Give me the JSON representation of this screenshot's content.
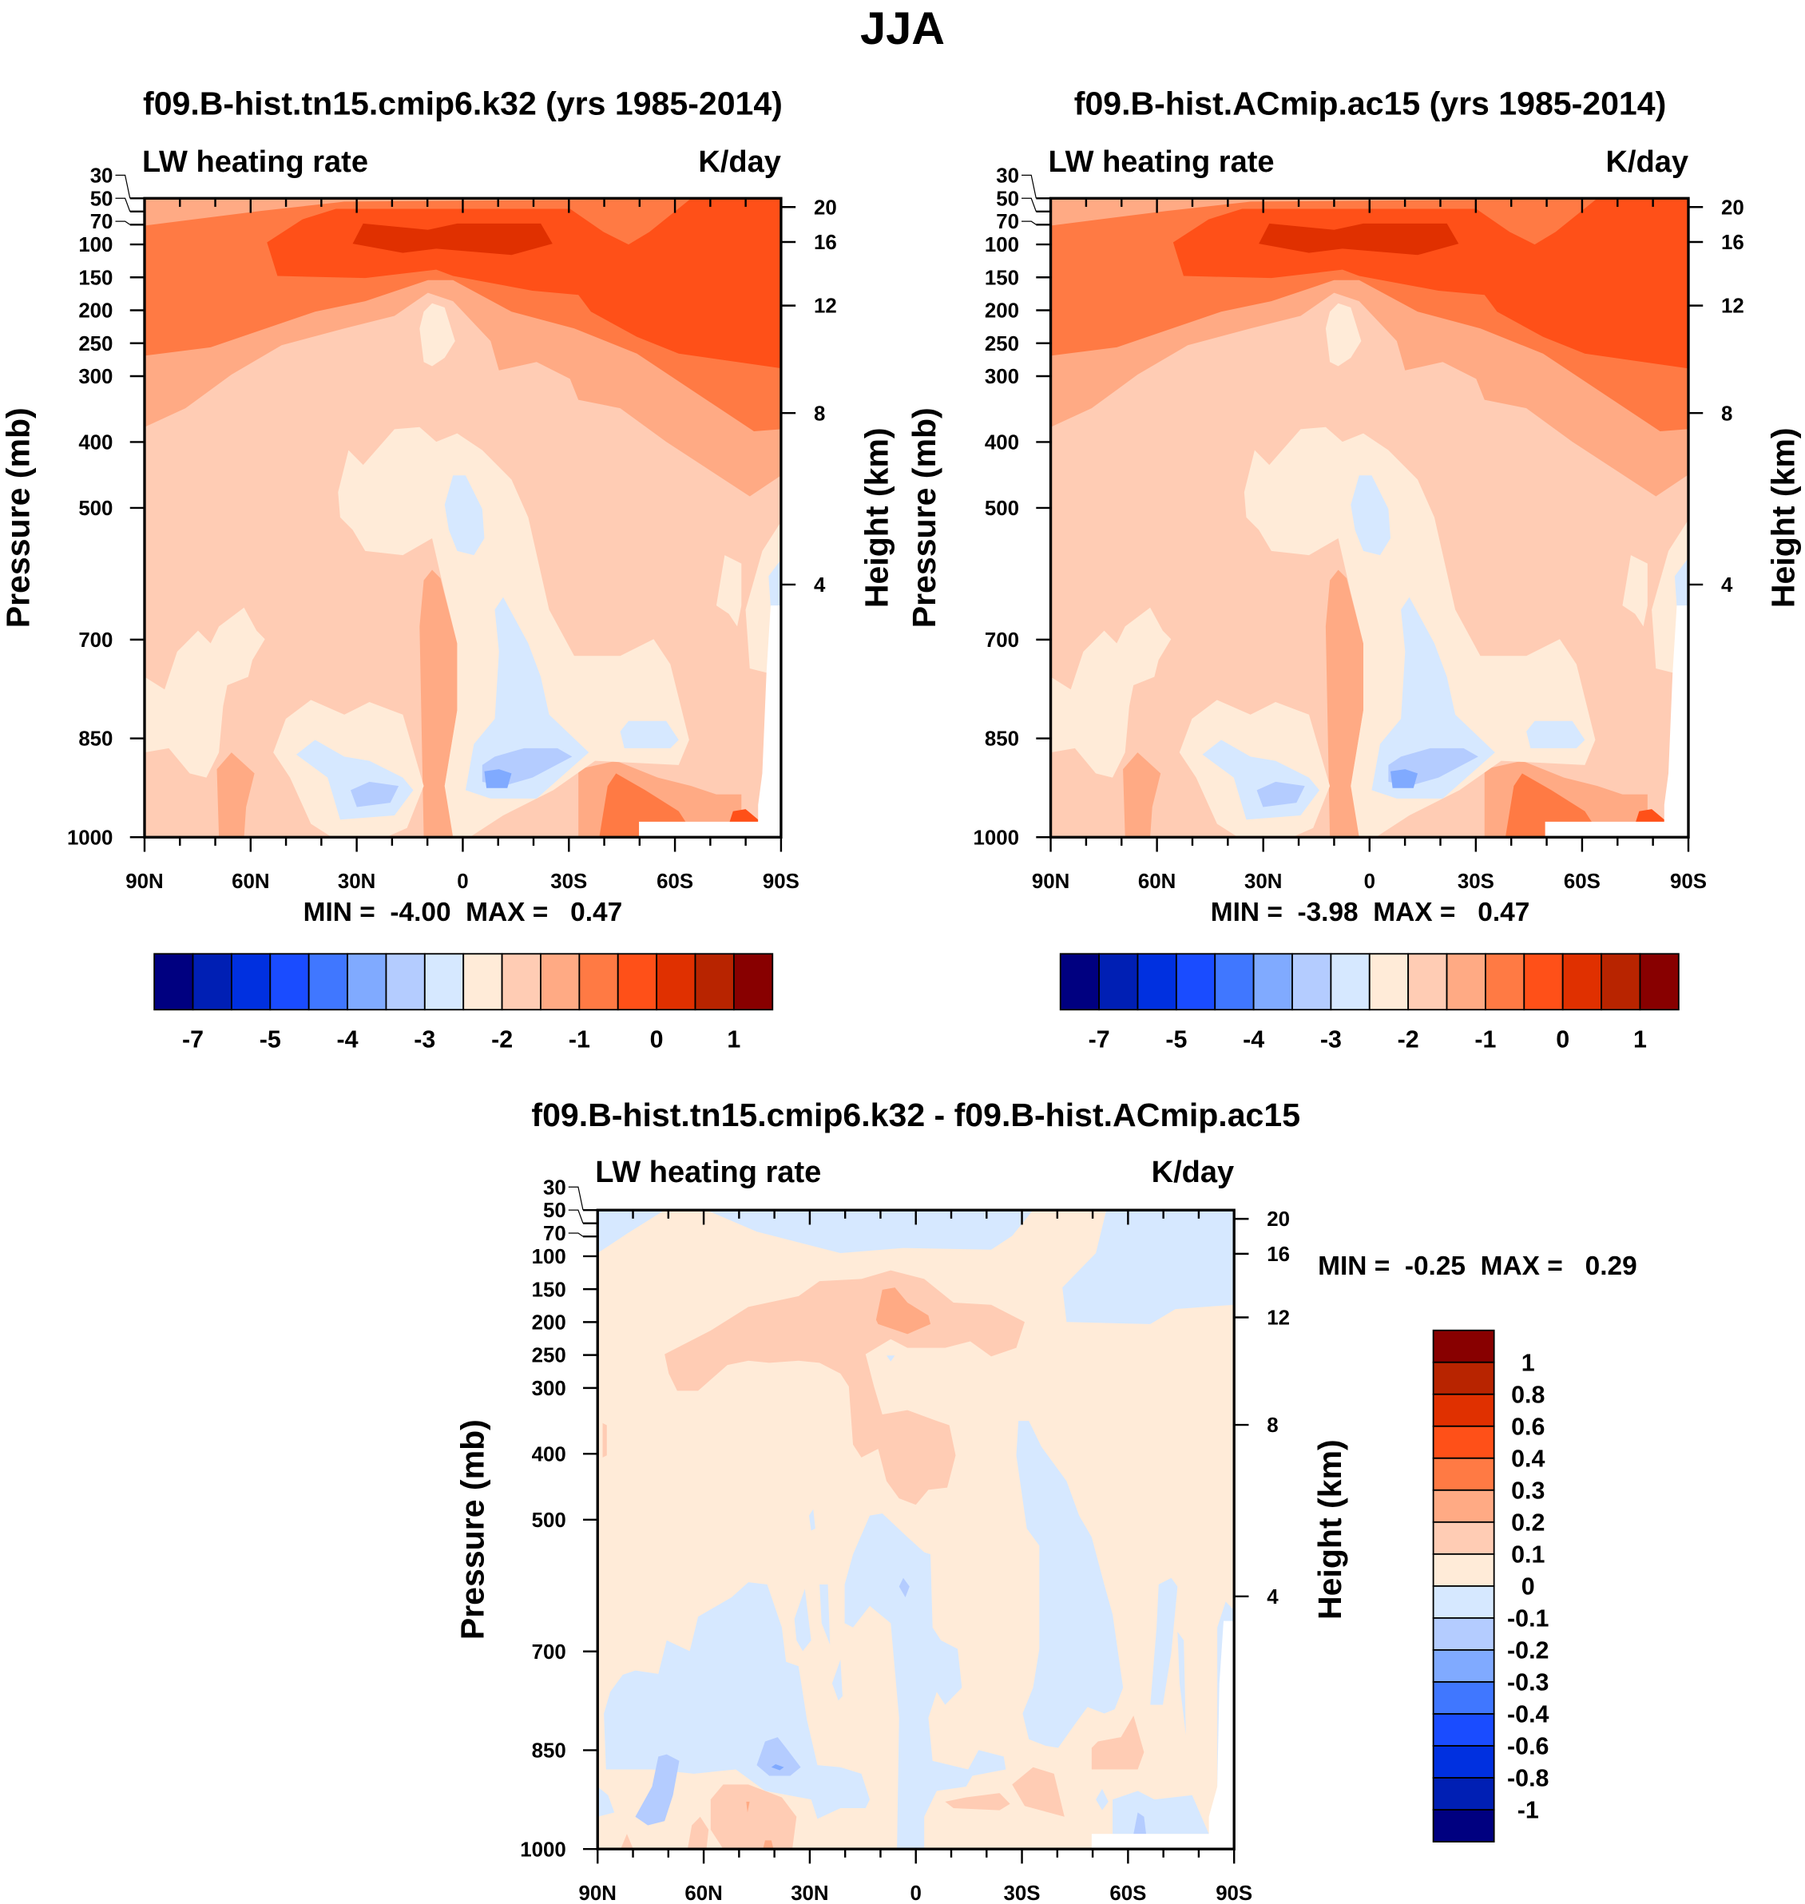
{
  "title": "JJA",
  "chart_data": [
    {
      "type": "contour",
      "title": "f09.B-hist.tn15.cmip6.k32 (yrs 1985-2014)",
      "left_label": "LW heating rate",
      "right_label": "K/day",
      "ylabel": "Pressure (mb)",
      "y2label": "Height (km)",
      "xticks": [
        "90N",
        "60N",
        "30N",
        "0",
        "30S",
        "60S",
        "90S"
      ],
      "xlim": [
        90,
        -90
      ],
      "yticks": [
        "30",
        "50",
        "70",
        "100",
        "150",
        "200",
        "250",
        "300",
        "400",
        "500",
        "700",
        "850",
        "1000"
      ],
      "ylim": [
        1000,
        30
      ],
      "y2ticks": [
        "20",
        "16",
        "12",
        "8",
        "4"
      ],
      "stats": "MIN =  -4.00  MAX =   0.47",
      "colorbar": {
        "labels": [
          "-7",
          "-5",
          "-4",
          "-3",
          "-2",
          "-1",
          "0",
          "1"
        ],
        "colors": [
          "#000080",
          "#001fb4",
          "#0030e0",
          "#1a4cff",
          "#4077ff",
          "#80aaff",
          "#b4ccff",
          "#d6e8ff",
          "#ffebd8",
          "#ffccb4",
          "#ffaa84",
          "#ff7a44",
          "#ff5018",
          "#e03000",
          "#b82400",
          "#880000"
        ]
      }
    },
    {
      "type": "contour",
      "title": "f09.B-hist.ACmip.ac15 (yrs 1985-2014)",
      "left_label": "LW heating rate",
      "right_label": "K/day",
      "ylabel": "Pressure (mb)",
      "y2label": "Height (km)",
      "xticks": [
        "90N",
        "60N",
        "30N",
        "0",
        "30S",
        "60S",
        "90S"
      ],
      "xlim": [
        90,
        -90
      ],
      "yticks": [
        "30",
        "50",
        "70",
        "100",
        "150",
        "200",
        "250",
        "300",
        "400",
        "500",
        "700",
        "850",
        "1000"
      ],
      "ylim": [
        1000,
        30
      ],
      "y2ticks": [
        "20",
        "16",
        "12",
        "8",
        "4"
      ],
      "stats": "MIN =  -3.98  MAX =   0.47",
      "colorbar": {
        "labels": [
          "-7",
          "-5",
          "-4",
          "-3",
          "-2",
          "-1",
          "0",
          "1"
        ],
        "colors": [
          "#000080",
          "#001fb4",
          "#0030e0",
          "#1a4cff",
          "#4077ff",
          "#80aaff",
          "#b4ccff",
          "#d6e8ff",
          "#ffebd8",
          "#ffccb4",
          "#ffaa84",
          "#ff7a44",
          "#ff5018",
          "#e03000",
          "#b82400",
          "#880000"
        ]
      }
    },
    {
      "type": "contour",
      "title": "f09.B-hist.tn15.cmip6.k32 - f09.B-hist.ACmip.ac15",
      "left_label": "LW heating rate",
      "right_label": "K/day",
      "ylabel": "Pressure (mb)",
      "y2label": "Height (km)",
      "xticks": [
        "90N",
        "60N",
        "30N",
        "0",
        "30S",
        "60S",
        "90S"
      ],
      "xlim": [
        90,
        -90
      ],
      "yticks": [
        "30",
        "50",
        "70",
        "100",
        "150",
        "200",
        "250",
        "300",
        "400",
        "500",
        "700",
        "850",
        "1000"
      ],
      "ylim": [
        1000,
        30
      ],
      "y2ticks": [
        "20",
        "16",
        "12",
        "8",
        "4"
      ],
      "stats": "MIN =  -0.25  MAX =   0.29",
      "colorbar": {
        "labels": [
          "1",
          "0.8",
          "0.6",
          "0.4",
          "0.3",
          "0.2",
          "0.1",
          "0",
          "-0.1",
          "-0.2",
          "-0.3",
          "-0.4",
          "-0.6",
          "-0.8",
          "-1"
        ],
        "colors": [
          "#880000",
          "#b82400",
          "#e03000",
          "#ff5018",
          "#ff7a44",
          "#ffaa84",
          "#ffccb4",
          "#ffebd8",
          "#d6e8ff",
          "#b4ccff",
          "#80aaff",
          "#4077ff",
          "#1a4cff",
          "#0030e0",
          "#001fb4",
          "#000080"
        ]
      }
    }
  ]
}
